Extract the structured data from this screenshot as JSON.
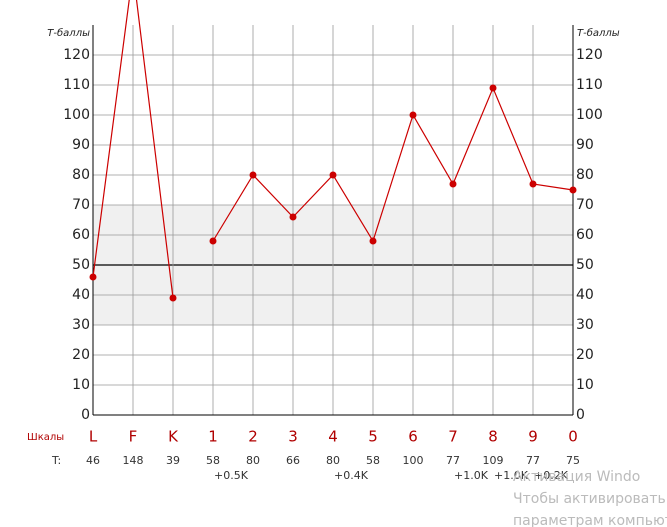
{
  "chart_data": {
    "type": "line",
    "y_label": "Т-баллы",
    "x_label": "Шкалы",
    "values_row_label": "T:",
    "categories": [
      "L",
      "F",
      "K",
      "1",
      "2",
      "3",
      "4",
      "5",
      "6",
      "7",
      "8",
      "9",
      "0"
    ],
    "series": [
      {
        "color": "#cc0000",
        "values": [
          46,
          148,
          39,
          null,
          null,
          null,
          null,
          null,
          null,
          null,
          null,
          null,
          null
        ]
      },
      {
        "color": "#cc0000",
        "values": [
          null,
          null,
          null,
          58,
          80,
          66,
          80,
          58,
          100,
          77,
          109,
          77,
          75
        ]
      }
    ],
    "correction_labels": [
      null,
      null,
      null,
      "+0.5K",
      null,
      null,
      "+0.4K",
      null,
      null,
      "+1.0K",
      "+1.0K",
      "+0.2K",
      null
    ],
    "ylim": [
      0,
      130
    ],
    "yticks": [
      0,
      10,
      20,
      30,
      40,
      50,
      60,
      70,
      80,
      90,
      100,
      110,
      120
    ],
    "normal_band": [
      30,
      70
    ],
    "midline": 50,
    "grid": true,
    "watermark": [
      "Активация Windo",
      "Чтобы активировать W",
      "параметрам компьют"
    ]
  }
}
